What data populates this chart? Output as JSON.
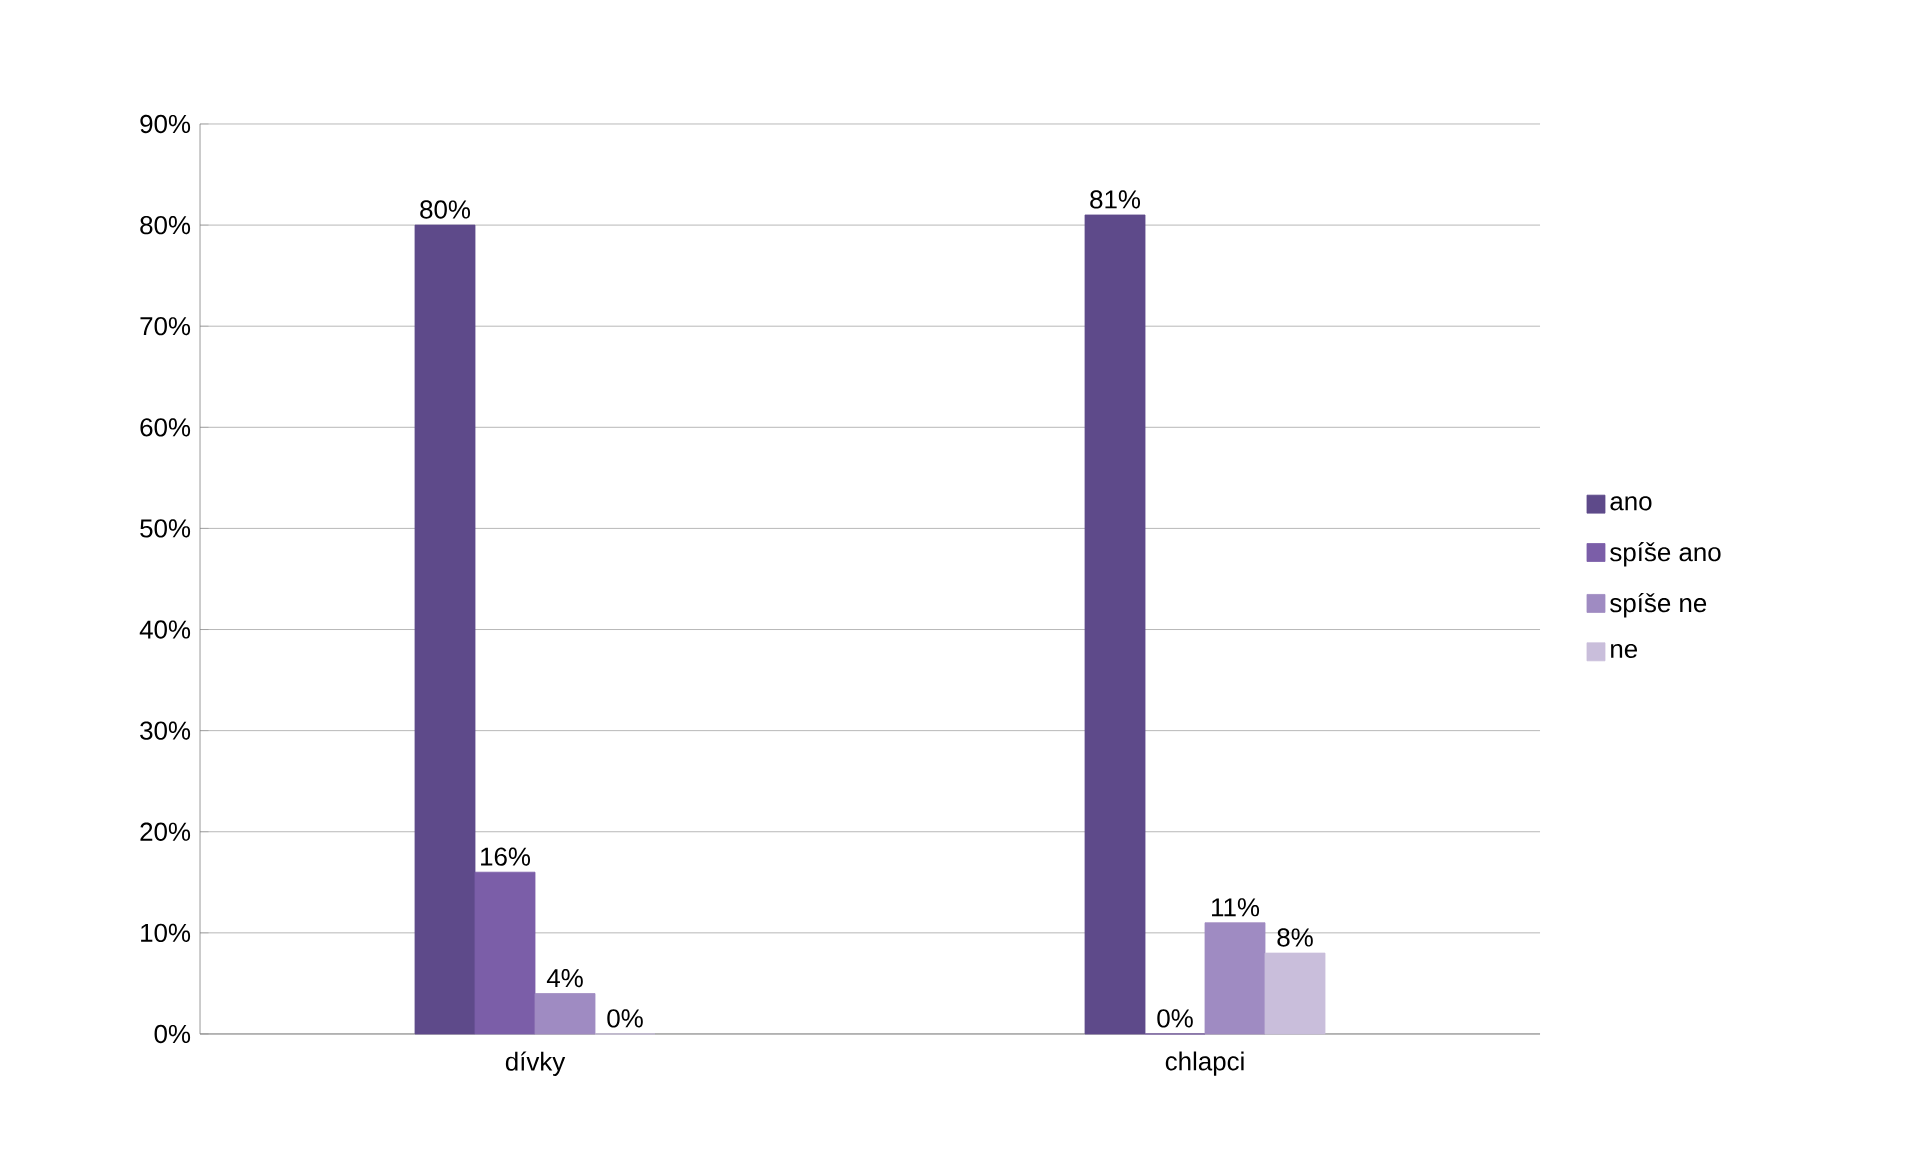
{
  "chart_data": {
    "type": "bar",
    "categories": [
      "dívky",
      "chlapci"
    ],
    "series": [
      {
        "name": "ano",
        "color": "#5e4a8a",
        "values": [
          80,
          81
        ],
        "value_labels": [
          "80%",
          "81%"
        ]
      },
      {
        "name": "spíše ano",
        "color": "#7b5ea8",
        "values": [
          16,
          0
        ],
        "value_labels": [
          "16%",
          "0%"
        ]
      },
      {
        "name": "spíše ne",
        "color": "#9f8bc2",
        "values": [
          4,
          11
        ],
        "value_labels": [
          "4%",
          "11%"
        ]
      },
      {
        "name": "ne",
        "color": "#c9bedb",
        "values": [
          0,
          8
        ],
        "value_labels": [
          "0%",
          "8%"
        ]
      }
    ],
    "ylim": [
      0,
      90
    ],
    "yticks": [
      {
        "value": 0,
        "label": "0%"
      },
      {
        "value": 10,
        "label": "10%"
      },
      {
        "value": 20,
        "label": "20%"
      },
      {
        "value": 30,
        "label": "30%"
      },
      {
        "value": 40,
        "label": "40%"
      },
      {
        "value": 50,
        "label": "50%"
      },
      {
        "value": 60,
        "label": "60%"
      },
      {
        "value": 70,
        "label": "70%"
      },
      {
        "value": 80,
        "label": "80%"
      },
      {
        "value": 90,
        "label": "90%"
      }
    ],
    "grid": "y",
    "legend": "right"
  }
}
